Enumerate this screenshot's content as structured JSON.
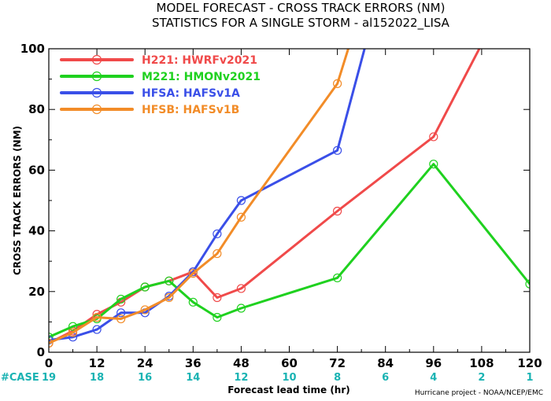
{
  "chart_data": {
    "type": "line",
    "title_line1": "MODEL FORECAST - CROSS TRACK ERRORS (NM)",
    "title_line2": "STATISTICS FOR A SINGLE STORM - al152022_LISA",
    "xlabel": "Forecast lead time (hr)",
    "ylabel": "CROSS TRACK ERRORS (NM)",
    "credit": "Hurricane project - NOAA/NCEP/EMC",
    "xlim": [
      0,
      120
    ],
    "ylim": [
      0,
      100
    ],
    "x_ticks": [
      0,
      12,
      24,
      36,
      48,
      60,
      72,
      84,
      96,
      108,
      120
    ],
    "y_ticks": [
      0,
      20,
      40,
      60,
      80,
      100
    ],
    "grid": false,
    "legend_position": "top-left",
    "case_label": "#CASE",
    "case_counts": [
      "19",
      "18",
      "16",
      "14",
      "12",
      "10",
      "8",
      "6",
      "4",
      "2",
      "1"
    ],
    "case_color": "#1ab3b3",
    "series": [
      {
        "id": "H221",
        "legend_label": "H221: HWRFv2021",
        "color": "#f04a4a",
        "x": [
          0,
          6,
          12,
          18,
          24,
          30,
          36,
          42,
          48,
          72,
          96,
          120
        ],
        "y": [
          3,
          7,
          12.5,
          16.5,
          21.5,
          23.5,
          26.5,
          18,
          21,
          46.5,
          71,
          132
        ]
      },
      {
        "id": "M221",
        "legend_label": "M221: HMONv2021",
        "color": "#1fd11f",
        "x": [
          0,
          6,
          12,
          18,
          24,
          30,
          36,
          42,
          48,
          72,
          96,
          120
        ],
        "y": [
          5,
          8.5,
          11,
          17.5,
          21.5,
          23.5,
          16.5,
          11.5,
          14.5,
          24.5,
          62,
          22.5
        ]
      },
      {
        "id": "HFSA",
        "legend_label": "HFSA: HAFSv1A",
        "color": "#3a4fe8",
        "x": [
          0,
          6,
          12,
          18,
          24,
          30,
          36,
          42,
          48,
          72,
          96
        ],
        "y": [
          4,
          5,
          7.5,
          13,
          13,
          18.5,
          26.5,
          39,
          50,
          66.5,
          185
        ]
      },
      {
        "id": "HFSB",
        "legend_label": "HFSB: HAFSv1B",
        "color": "#f28c28",
        "x": [
          0,
          6,
          12,
          18,
          24,
          30,
          36,
          42,
          48,
          72,
          96
        ],
        "y": [
          3,
          6.5,
          11.5,
          11,
          14,
          18,
          26,
          32.5,
          44.5,
          88.5,
          190
        ]
      }
    ]
  }
}
